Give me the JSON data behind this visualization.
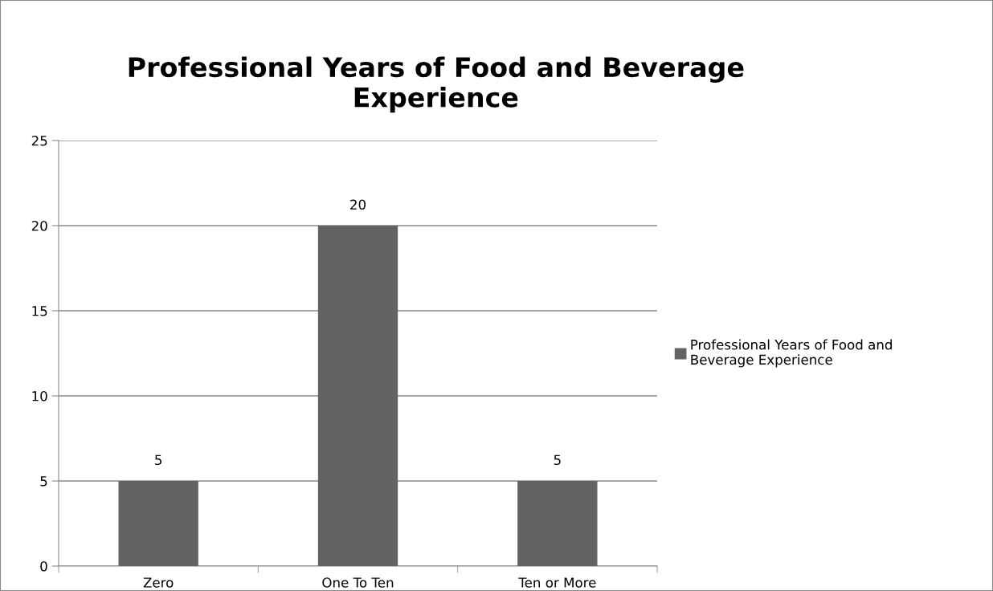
{
  "chart_data": {
    "type": "bar",
    "title": "Professional Years of Food and Beverage Experience",
    "categories": [
      "Zero",
      "One To Ten",
      "Ten or More"
    ],
    "series": [
      {
        "name": "Professional Years of Food and Beverage Experience",
        "color": "#636363",
        "values": [
          5,
          20,
          5
        ]
      }
    ],
    "ylim": [
      0,
      25
    ],
    "yticks": [
      0,
      5,
      10,
      15,
      20,
      25
    ],
    "grid": "y",
    "legend": "right",
    "data_labels": true
  }
}
